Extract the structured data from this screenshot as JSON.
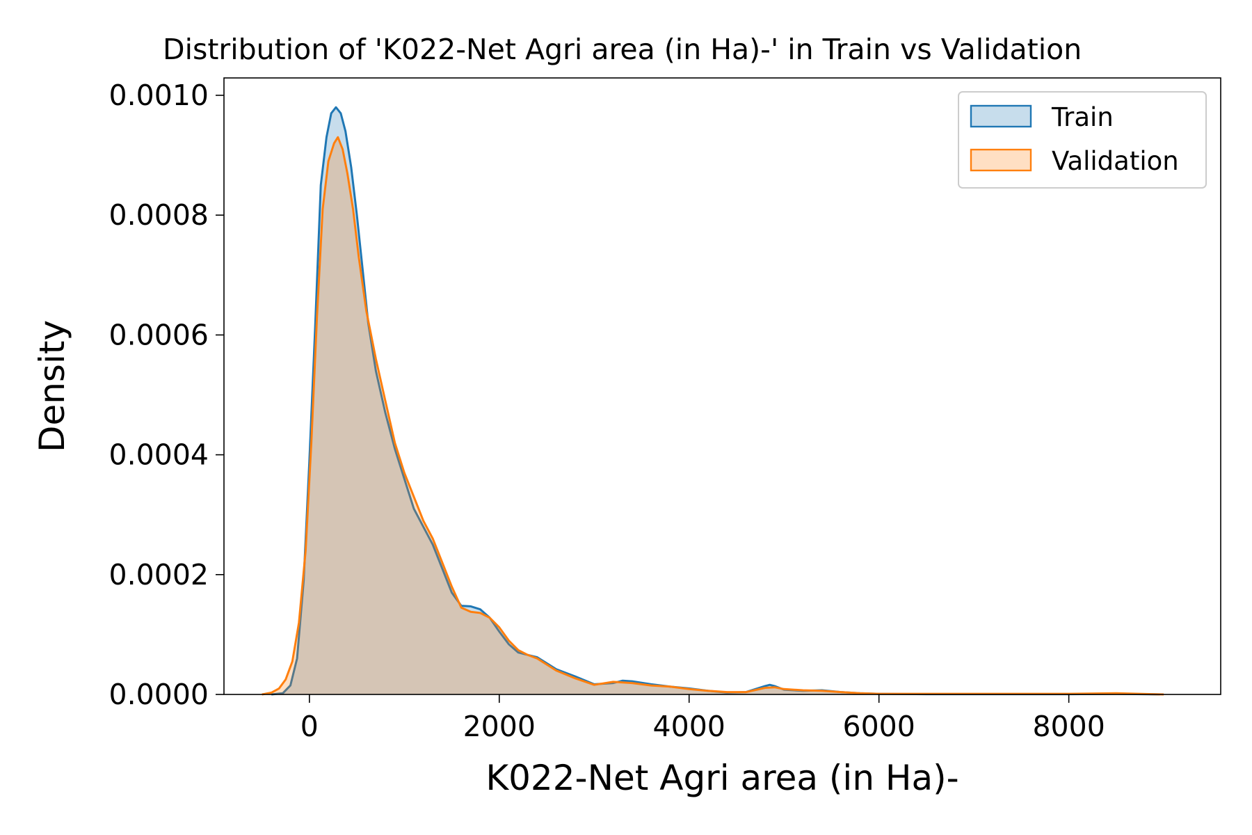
{
  "chart_data": {
    "type": "area",
    "title": "Distribution of 'K022-Net Agri area (in Ha)-' in Train vs Validation",
    "xlabel": "K022-Net Agri area (in Ha)-",
    "ylabel": "Density",
    "xlim": [
      -900,
      9600
    ],
    "ylim": [
      0,
      0.001029
    ],
    "xticks": [
      0,
      2000,
      4000,
      6000,
      8000
    ],
    "yticks": [
      0.0,
      0.0002,
      0.0004,
      0.0006,
      0.0008,
      0.001
    ],
    "xtick_labels": [
      "0",
      "2000",
      "4000",
      "6000",
      "8000"
    ],
    "ytick_labels": [
      "0.0000",
      "0.0002",
      "0.0004",
      "0.0006",
      "0.0008",
      "0.0010"
    ],
    "grid": false,
    "legend_position": "top-right",
    "series": [
      {
        "name": "Train",
        "color": "#1f77b4",
        "x": [
          -400,
          -280,
          -200,
          -130,
          -60,
          0,
          60,
          120,
          180,
          230,
          280,
          330,
          380,
          440,
          500,
          560,
          620,
          700,
          800,
          900,
          1000,
          1100,
          1200,
          1300,
          1400,
          1500,
          1600,
          1700,
          1800,
          1900,
          2000,
          2100,
          2200,
          2300,
          2400,
          2500,
          2600,
          2800,
          3000,
          3200,
          3300,
          3400,
          3600,
          3800,
          4000,
          4200,
          4400,
          4600,
          4800,
          4850,
          4900,
          5000,
          5200,
          5400,
          5600,
          5800,
          6000,
          6500,
          7000,
          7500,
          8000,
          8500,
          8960
        ],
        "y": [
          0,
          2e-06,
          1.5e-05,
          6e-05,
          0.00019,
          0.00039,
          0.00061,
          0.00085,
          0.00093,
          0.00097,
          0.00098,
          0.00097,
          0.00094,
          0.00088,
          0.0008,
          0.00071,
          0.00062,
          0.00054,
          0.00047,
          0.00041,
          0.00036,
          0.00031,
          0.00028,
          0.00025,
          0.00021,
          0.00017,
          0.000148,
          0.000147,
          0.000142,
          0.000128,
          0.000105,
          8.4e-05,
          7e-05,
          6.6e-05,
          6.2e-05,
          5.2e-05,
          4.2e-05,
          3e-05,
          1.7e-05,
          1.9e-05,
          2.3e-05,
          2.2e-05,
          1.7e-05,
          1.3e-05,
          1e-05,
          6e-06,
          3e-06,
          4e-06,
          1.4e-05,
          1.6e-05,
          1.4e-05,
          8e-06,
          6e-06,
          7e-06,
          4e-06,
          2e-06,
          1e-06,
          5e-07,
          5e-07,
          5e-07,
          5e-07,
          1e-06,
          0
        ]
      },
      {
        "name": "Validation",
        "color": "#ff7f0e",
        "x": [
          -500,
          -400,
          -320,
          -250,
          -180,
          -110,
          -40,
          20,
          80,
          140,
          200,
          260,
          300,
          350,
          400,
          460,
          520,
          600,
          700,
          800,
          900,
          1000,
          1100,
          1200,
          1300,
          1400,
          1500,
          1600,
          1700,
          1800,
          1900,
          2000,
          2100,
          2200,
          2300,
          2400,
          2600,
          2800,
          3000,
          3200,
          3400,
          3600,
          3800,
          4000,
          4200,
          4400,
          4600,
          4800,
          4900,
          5000,
          5200,
          5400,
          5600,
          5800,
          6000,
          6500,
          7000,
          7500,
          8000,
          8500,
          9000
        ],
        "y": [
          0,
          3e-06,
          1e-05,
          2.5e-05,
          5.5e-05,
          0.00012,
          0.00024,
          0.00042,
          0.00063,
          0.00081,
          0.00089,
          0.00092,
          0.00093,
          0.00091,
          0.00087,
          0.00081,
          0.00073,
          0.00064,
          0.00056,
          0.00049,
          0.00042,
          0.00037,
          0.00033,
          0.00029,
          0.00026,
          0.00022,
          0.00018,
          0.000145,
          0.000138,
          0.000136,
          0.000128,
          0.000112,
          9e-05,
          7.4e-05,
          6.6e-05,
          6e-05,
          4e-05,
          2.7e-05,
          1.6e-05,
          2.1e-05,
          1.9e-05,
          1.5e-05,
          1.3e-05,
          9e-06,
          6e-06,
          4e-06,
          4e-06,
          1.1e-05,
          1.2e-05,
          9e-06,
          7e-06,
          6e-06,
          4e-06,
          2e-06,
          1e-06,
          1e-06,
          1e-06,
          1e-06,
          1e-06,
          2e-06,
          0
        ]
      }
    ]
  }
}
